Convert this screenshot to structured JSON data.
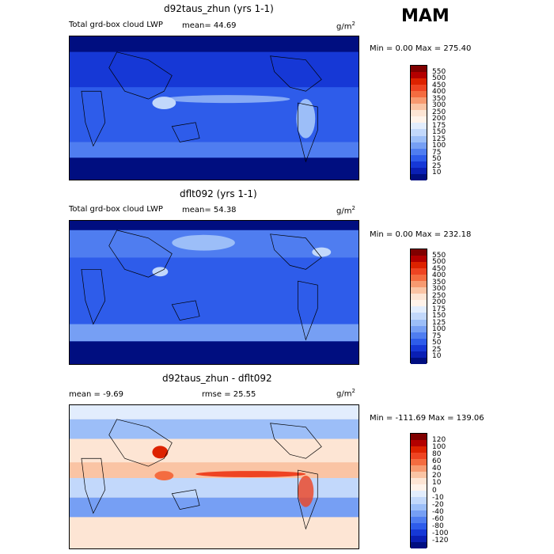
{
  "season": "MAM",
  "palettes": {
    "lwp": [
      "#800000",
      "#b30000",
      "#dd2200",
      "#ee4422",
      "#f46c40",
      "#f79a70",
      "#fac4a4",
      "#fde5d4",
      "#fff3ea",
      "#e2edfd",
      "#c2d8fb",
      "#9cbef8",
      "#769ff4",
      "#4f7df0",
      "#2e5cea",
      "#1638d6",
      "#0a1fb4",
      "#000e80"
    ],
    "diff": [
      "#800000",
      "#b30000",
      "#dd2200",
      "#ee4422",
      "#f46c40",
      "#f79a70",
      "#fac4a4",
      "#fde5d4",
      "#fff3ea",
      "#e2edfd",
      "#c2d8fb",
      "#9cbef8",
      "#769ff4",
      "#4f7df0",
      "#2e5cea",
      "#1638d6",
      "#0a1fb4",
      "#000e80"
    ]
  },
  "panels": [
    {
      "title": "d92taus_zhun (yrs 1-1)",
      "left_label": "Total grd-box cloud LWP",
      "mean_text": "mean=  44.69",
      "units": "g/m",
      "units_exp": "2",
      "stats": "Min =    0.00 Max = 275.40",
      "colorbar_labels": [
        "550",
        "500",
        "450",
        "400",
        "350",
        "300",
        "250",
        "200",
        "175",
        "150",
        "125",
        "100",
        "75",
        "50",
        "25",
        "10"
      ]
    },
    {
      "title": "dflt092 (yrs 1-1)",
      "left_label": "Total grd-box cloud LWP",
      "mean_text": "mean=  54.38",
      "units": "g/m",
      "units_exp": "2",
      "stats": "Min =    0.00 Max = 232.18",
      "colorbar_labels": [
        "550",
        "500",
        "450",
        "400",
        "350",
        "300",
        "250",
        "200",
        "175",
        "150",
        "125",
        "100",
        "75",
        "50",
        "25",
        "10"
      ]
    },
    {
      "title": "d92taus_zhun - dflt092",
      "left_label": "mean =   -9.69",
      "mean_text": "rmse =   25.55",
      "units": "g/m",
      "units_exp": "2",
      "stats": "Min = -111.69 Max = 139.06",
      "colorbar_labels": [
        "120",
        "100",
        "80",
        "60",
        "40",
        "20",
        "10",
        "0",
        "-10",
        "-20",
        "-40",
        "-60",
        "-80",
        "-100",
        "-120"
      ]
    }
  ]
}
